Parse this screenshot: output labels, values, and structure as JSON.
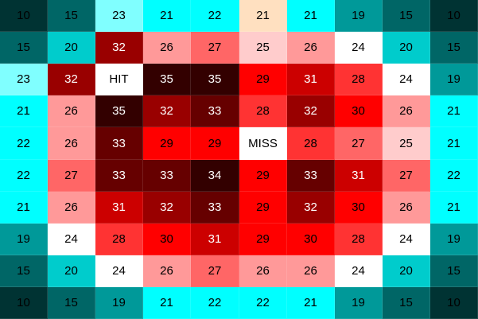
{
  "board": {
    "rows": 10,
    "cols": 10,
    "cells": [
      [
        "10",
        "15",
        "23",
        "21",
        "22",
        "21",
        "21",
        "19",
        "15",
        "10"
      ],
      [
        "15",
        "20",
        "32",
        "26",
        "27",
        "25",
        "26",
        "24",
        "20",
        "15"
      ],
      [
        "23",
        "32",
        "HIT",
        "35",
        "35",
        "29",
        "31",
        "28",
        "24",
        "19"
      ],
      [
        "21",
        "26",
        "35",
        "32",
        "33",
        "28",
        "32",
        "30",
        "26",
        "21"
      ],
      [
        "22",
        "26",
        "33",
        "29",
        "29",
        "MISS",
        "28",
        "27",
        "25",
        "21"
      ],
      [
        "22",
        "27",
        "33",
        "33",
        "34",
        "29",
        "33",
        "31",
        "27",
        "22"
      ],
      [
        "21",
        "26",
        "31",
        "32",
        "33",
        "29",
        "32",
        "30",
        "26",
        "21"
      ],
      [
        "19",
        "24",
        "28",
        "30",
        "31",
        "29",
        "30",
        "28",
        "24",
        "19"
      ],
      [
        "15",
        "20",
        "24",
        "26",
        "27",
        "26",
        "26",
        "24",
        "20",
        "15"
      ],
      [
        "10",
        "15",
        "19",
        "21",
        "22",
        "22",
        "21",
        "19",
        "15",
        "10"
      ]
    ],
    "colors": {
      "10": "#003333",
      "15": "#006666",
      "19": "#009999",
      "20": "#00cccc",
      "21": "#00ffff",
      "22": "#00ffff",
      "23": "#80ffff",
      "24": "#ffffff",
      "25": "#ffcccc",
      "26": "#ff9999",
      "27": "#ff6666",
      "28": "#ff3333",
      "29": "#ff0000",
      "30": "#ff0000",
      "31": "#cc0000",
      "32": "#990000",
      "33": "#660000",
      "34": "#330000",
      "35": "#330000",
      "HIT": "#ffffff",
      "MISS": "#ffffff"
    },
    "special_colors": {
      "r0c5": "#ffe0c0"
    }
  }
}
